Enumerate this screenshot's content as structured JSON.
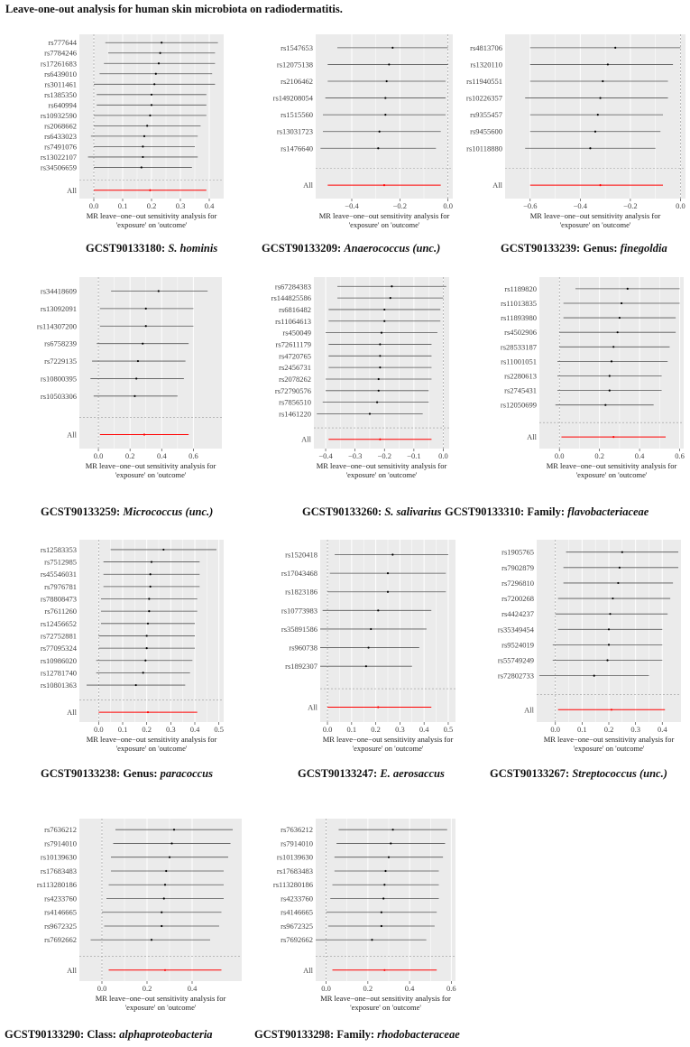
{
  "page_title": "Leave-one-out analysis for human skin microbiota on radiodermatitis.",
  "xlabel_line1": "MR leave−one−out sensitivity analysis for",
  "xlabel_line2": "'exposure' on 'outcome'",
  "all_label": "All",
  "colors": {
    "panel_bg": "#ebebeb",
    "grid": "#ffffff",
    "point": "#000000",
    "ci": "#555555",
    "all_line": "#ff0000"
  },
  "chart_data": [
    {
      "type": "scatter",
      "caption_id": "GCST90133180",
      "caption_taxon": "S. hominis",
      "caption_prefix": "",
      "xlim": [
        -0.05,
        0.45
      ],
      "xticks": [
        0.0,
        0.1,
        0.2,
        0.3,
        0.4
      ],
      "tick_labels": [
        "0.0",
        "0.1",
        "0.2",
        "0.3",
        "0.4"
      ],
      "snps": [
        "rs777644",
        "rs7784246",
        "rs17261683",
        "rs6439010",
        "rs3011461",
        "rs1385350",
        "rs640994",
        "rs10932590",
        "rs2068662",
        "rs6433023",
        "rs7491076",
        "rs13022107",
        "rs34506659"
      ],
      "estimates": [
        0.235,
        0.23,
        0.225,
        0.215,
        0.21,
        0.2,
        0.2,
        0.195,
        0.185,
        0.175,
        0.17,
        0.17,
        0.165
      ],
      "lower": [
        0.04,
        0.05,
        0.035,
        0.02,
        0.0,
        0.01,
        0.01,
        0.0,
        0.0,
        -0.01,
        0.0,
        -0.02,
        0.0
      ],
      "upper": [
        0.43,
        0.42,
        0.42,
        0.41,
        0.42,
        0.39,
        0.39,
        0.39,
        0.37,
        0.36,
        0.35,
        0.36,
        0.34
      ],
      "all": {
        "estimate": 0.195,
        "lower": 0.0,
        "upper": 0.39
      }
    },
    {
      "type": "scatter",
      "caption_id": "GCST90133209",
      "caption_taxon": "Anaerococcus (unc.)",
      "caption_prefix": "",
      "xlim": [
        -0.55,
        0.02
      ],
      "xticks": [
        -0.4,
        -0.2,
        0.0
      ],
      "tick_labels": [
        "−0.4",
        "−0.2",
        "0.0"
      ],
      "snps": [
        "rs1547653",
        "rs12075138",
        "rs2106462",
        "rs149208054",
        "rs1515560",
        "rs13031723",
        "rs1476640"
      ],
      "estimates": [
        -0.23,
        -0.245,
        -0.255,
        -0.26,
        -0.26,
        -0.285,
        -0.29
      ],
      "lower": [
        -0.46,
        -0.5,
        -0.5,
        -0.51,
        -0.52,
        -0.52,
        -0.53
      ],
      "upper": [
        0.0,
        0.0,
        -0.01,
        -0.01,
        -0.01,
        -0.03,
        -0.05
      ],
      "all": {
        "estimate": -0.265,
        "lower": -0.5,
        "upper": -0.03
      }
    },
    {
      "type": "scatter",
      "caption_id": "GCST90133239",
      "caption_taxon": "finegoldia",
      "caption_prefix": "Genus: ",
      "xlim": [
        -0.7,
        0.02
      ],
      "xticks": [
        -0.6,
        -0.4,
        -0.2,
        0.0
      ],
      "tick_labels": [
        "−0.6",
        "−0.4",
        "−0.2",
        "0.0"
      ],
      "snps": [
        "rs4813706",
        "rs1320110",
        "rs11940551",
        "rs10226357",
        "rs9355457",
        "rs9455600",
        "rs10118880"
      ],
      "estimates": [
        -0.26,
        -0.29,
        -0.31,
        -0.32,
        -0.33,
        -0.34,
        -0.36
      ],
      "lower": [
        -0.6,
        -0.6,
        -0.6,
        -0.62,
        -0.6,
        -0.6,
        -0.62
      ],
      "upper": [
        0.0,
        -0.03,
        -0.05,
        -0.05,
        -0.07,
        -0.08,
        -0.1
      ],
      "all": {
        "estimate": -0.32,
        "lower": -0.6,
        "upper": -0.07
      }
    },
    {
      "type": "scatter",
      "caption_id": "GCST90133259",
      "caption_taxon": "Micrococcus (unc.)",
      "caption_prefix": "",
      "xlim": [
        -0.12,
        0.78
      ],
      "xticks": [
        0.0,
        0.2,
        0.4,
        0.6
      ],
      "tick_labels": [
        "0.0",
        "0.2",
        "0.4",
        "0.6"
      ],
      "snps": [
        "rs34418609",
        "rs13092091",
        "rs114307200",
        "rs6758239",
        "rs7229135",
        "rs10800395",
        "rs10503306"
      ],
      "estimates": [
        0.38,
        0.3,
        0.3,
        0.28,
        0.25,
        0.24,
        0.23
      ],
      "lower": [
        0.08,
        0.01,
        0.01,
        -0.01,
        -0.04,
        -0.05,
        -0.03
      ],
      "upper": [
        0.69,
        0.6,
        0.6,
        0.57,
        0.55,
        0.54,
        0.5
      ],
      "all": {
        "estimate": 0.29,
        "lower": 0.01,
        "upper": 0.57
      }
    },
    {
      "type": "scatter",
      "caption_id": "GCST90133260",
      "caption_taxon": "S. salivarius",
      "caption_prefix": "",
      "xlim": [
        -0.44,
        0.02
      ],
      "xticks": [
        -0.4,
        -0.3,
        -0.2,
        -0.1,
        0.0
      ],
      "tick_labels": [
        "−0.4",
        "−0.3",
        "−0.2",
        "−0.1",
        "0.0"
      ],
      "snps": [
        "rs67284383",
        "rs144825586",
        "rs6816482",
        "rs11064613",
        "rs450049",
        "rs72611179",
        "rs4720765",
        "rs2456731",
        "rs2078262",
        "rs72790576",
        "rs7856510",
        "rs1461220"
      ],
      "estimates": [
        -0.175,
        -0.18,
        -0.2,
        -0.2,
        -0.21,
        -0.215,
        -0.215,
        -0.215,
        -0.22,
        -0.22,
        -0.225,
        -0.25
      ],
      "lower": [
        -0.36,
        -0.36,
        -0.39,
        -0.39,
        -0.4,
        -0.39,
        -0.39,
        -0.39,
        -0.4,
        -0.4,
        -0.41,
        -0.43
      ],
      "upper": [
        0.01,
        0.0,
        -0.01,
        -0.01,
        -0.02,
        -0.04,
        -0.04,
        -0.04,
        -0.04,
        -0.05,
        -0.05,
        -0.07
      ],
      "all": {
        "estimate": -0.215,
        "lower": -0.39,
        "upper": -0.04
      }
    },
    {
      "type": "scatter",
      "caption_id": "GCST90133310",
      "caption_taxon": "flavobacteriaceae",
      "caption_prefix": "Family: ",
      "xlim": [
        -0.1,
        0.62
      ],
      "xticks": [
        0.0,
        0.2,
        0.4,
        0.6
      ],
      "tick_labels": [
        "0.0",
        "0.2",
        "0.4",
        "0.6"
      ],
      "snps": [
        "rs1189820",
        "rs11013835",
        "rs11893980",
        "rs4502906",
        "rs28533187",
        "rs11001051",
        "rs2280613",
        "rs2745431",
        "rs12050699"
      ],
      "estimates": [
        0.34,
        0.31,
        0.3,
        0.29,
        0.27,
        0.26,
        0.25,
        0.25,
        0.23
      ],
      "lower": [
        0.08,
        0.02,
        0.02,
        0.0,
        0.0,
        -0.01,
        -0.01,
        -0.01,
        -0.02
      ],
      "upper": [
        0.6,
        0.6,
        0.58,
        0.58,
        0.55,
        0.54,
        0.51,
        0.51,
        0.47
      ],
      "all": {
        "estimate": 0.27,
        "lower": 0.01,
        "upper": 0.53
      }
    },
    {
      "type": "scatter",
      "caption_id": "GCST90133238",
      "caption_taxon": "paracoccus",
      "caption_prefix": "Genus: ",
      "xlim": [
        -0.08,
        0.52
      ],
      "xticks": [
        0.0,
        0.1,
        0.2,
        0.3,
        0.4,
        0.5
      ],
      "tick_labels": [
        "0.0",
        "0.1",
        "0.2",
        "0.3",
        "0.4",
        "0.5"
      ],
      "snps": [
        "rs12583353",
        "rs7512985",
        "rs45546031",
        "rs7976781",
        "rs78808473",
        "rs7611260",
        "rs12456652",
        "rs72752881",
        "rs77095324",
        "rs10986020",
        "rs12781740",
        "rs10801363"
      ],
      "estimates": [
        0.27,
        0.22,
        0.215,
        0.215,
        0.21,
        0.21,
        0.205,
        0.2,
        0.2,
        0.195,
        0.185,
        0.155
      ],
      "lower": [
        0.05,
        0.02,
        0.02,
        0.02,
        0.01,
        0.01,
        0.01,
        0.0,
        0.0,
        -0.01,
        -0.01,
        -0.05
      ],
      "upper": [
        0.49,
        0.42,
        0.42,
        0.42,
        0.41,
        0.41,
        0.4,
        0.4,
        0.4,
        0.39,
        0.38,
        0.36
      ],
      "all": {
        "estimate": 0.205,
        "lower": 0.0,
        "upper": 0.41
      }
    },
    {
      "type": "scatter",
      "caption_id": "GCST90133247",
      "caption_taxon": "E. aerosaccus",
      "caption_prefix": "",
      "xlim": [
        -0.03,
        0.53
      ],
      "xticks": [
        0.0,
        0.1,
        0.2,
        0.3,
        0.4,
        0.5
      ],
      "tick_labels": [
        "0.0",
        "0.1",
        "0.2",
        "0.3",
        "0.4",
        "0.5"
      ],
      "snps": [
        "rs1520418",
        "rs17043468",
        "rs1823186",
        "rs10773983",
        "rs35891586",
        "rs960738",
        "rs1892307"
      ],
      "estimates": [
        0.27,
        0.25,
        0.25,
        0.21,
        0.18,
        0.17,
        0.16
      ],
      "lower": [
        0.03,
        0.01,
        0.0,
        -0.02,
        -0.03,
        -0.03,
        -0.03
      ],
      "upper": [
        0.5,
        0.49,
        0.49,
        0.43,
        0.41,
        0.38,
        0.35
      ],
      "all": {
        "estimate": 0.21,
        "lower": 0.0,
        "upper": 0.43
      }
    },
    {
      "type": "scatter",
      "caption_id": "GCST90133267",
      "caption_taxon": "Streptococcus (unc.)",
      "caption_prefix": "",
      "xlim": [
        -0.07,
        0.47
      ],
      "xticks": [
        0.0,
        0.1,
        0.2,
        0.3,
        0.4
      ],
      "tick_labels": [
        "0.0",
        "0.1",
        "0.2",
        "0.3",
        "0.4"
      ],
      "snps": [
        "rs1905765",
        "rs7902879",
        "rs7296810",
        "rs7200268",
        "rs4424237",
        "rs35349454",
        "rs9524019",
        "rs55749249",
        "rs72802733"
      ],
      "estimates": [
        0.25,
        0.24,
        0.235,
        0.215,
        0.205,
        0.2,
        0.2,
        0.195,
        0.145
      ],
      "lower": [
        0.04,
        0.03,
        0.03,
        0.01,
        0.0,
        0.01,
        -0.01,
        -0.01,
        -0.06
      ],
      "upper": [
        0.46,
        0.46,
        0.44,
        0.43,
        0.42,
        0.4,
        0.4,
        0.4,
        0.35
      ],
      "all": {
        "estimate": 0.21,
        "lower": 0.01,
        "upper": 0.41
      }
    },
    {
      "type": "scatter",
      "caption_id": "GCST90133290",
      "caption_taxon": "alphaproteobacteria",
      "caption_prefix": "Class: ",
      "xlim": [
        -0.1,
        0.62
      ],
      "xticks": [
        0.0,
        0.2,
        0.4
      ],
      "tick_labels": [
        "0.0",
        "0.2",
        "0.4"
      ],
      "snps": [
        "rs7636212",
        "rs7914010",
        "rs10139630",
        "rs17683483",
        "rs113280186",
        "rs4233760",
        "rs4146665",
        "rs9672325",
        "rs7692662"
      ],
      "estimates": [
        0.32,
        0.31,
        0.3,
        0.285,
        0.28,
        0.275,
        0.265,
        0.265,
        0.22
      ],
      "lower": [
        0.06,
        0.05,
        0.04,
        0.04,
        0.03,
        0.02,
        0.0,
        0.01,
        -0.05
      ],
      "upper": [
        0.58,
        0.57,
        0.56,
        0.54,
        0.54,
        0.54,
        0.53,
        0.52,
        0.48
      ],
      "all": {
        "estimate": 0.28,
        "lower": 0.03,
        "upper": 0.53
      }
    },
    {
      "type": "scatter",
      "caption_id": "GCST90133298",
      "caption_taxon": "rhodobacteraceae",
      "caption_prefix": "Family: ",
      "xlim": [
        -0.05,
        0.62
      ],
      "xticks": [
        0.0,
        0.2,
        0.4,
        0.6
      ],
      "tick_labels": [
        "0.0",
        "0.2",
        "0.4",
        "0.6"
      ],
      "snps": [
        "rs7636212",
        "rs7914010",
        "rs10139630",
        "rs17683483",
        "rs113280186",
        "rs4233760",
        "rs4146665",
        "rs9672325",
        "rs7692662"
      ],
      "estimates": [
        0.32,
        0.31,
        0.3,
        0.285,
        0.28,
        0.275,
        0.265,
        0.265,
        0.22
      ],
      "lower": [
        0.06,
        0.05,
        0.04,
        0.04,
        0.03,
        0.02,
        0.0,
        0.01,
        -0.05
      ],
      "upper": [
        0.58,
        0.57,
        0.56,
        0.54,
        0.54,
        0.54,
        0.53,
        0.52,
        0.48
      ],
      "all": {
        "estimate": 0.28,
        "lower": 0.03,
        "upper": 0.53
      }
    }
  ]
}
